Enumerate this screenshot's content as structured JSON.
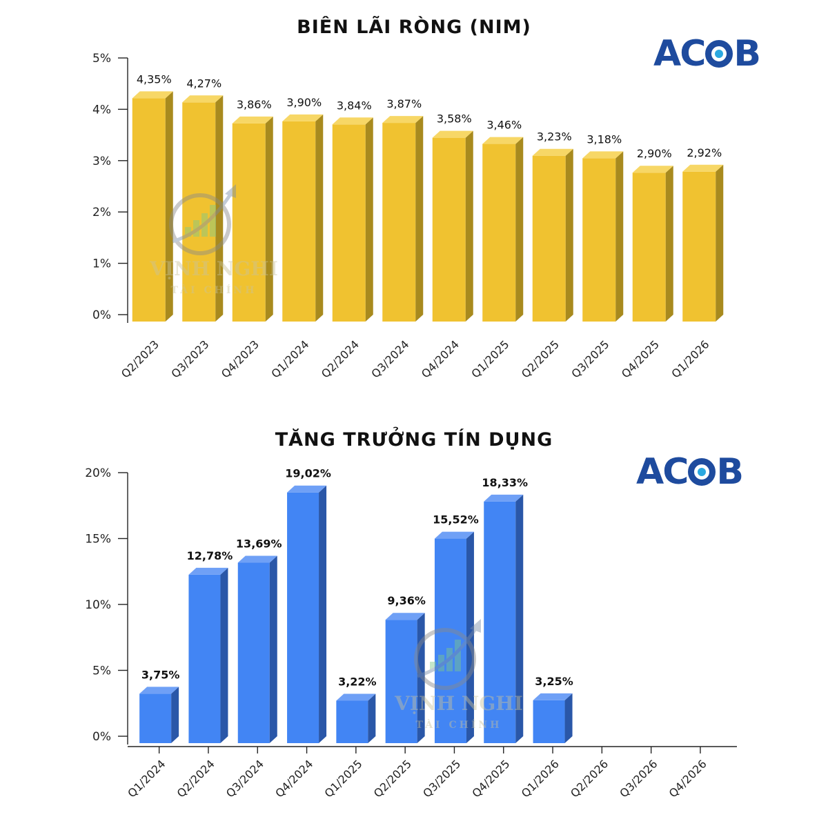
{
  "brand": {
    "logo_text_1": "AC",
    "logo_text_2": "B",
    "logo_color": "#1e4b9e",
    "logo_dot_color": "#2ba8e0"
  },
  "watermark": {
    "line1": "VỊNH NGHI",
    "line2": "TÀI CHÍNH"
  },
  "chart_data": [
    {
      "type": "bar",
      "title": "BIÊN LÃI RÒNG (NIM)",
      "categories": [
        "Q2/2023",
        "Q3/2023",
        "Q4/2023",
        "Q1/2024",
        "Q2/2024",
        "Q3/2024",
        "Q4/2024",
        "Q1/2025",
        "Q2/2025",
        "Q3/2025",
        "Q4/2025",
        "Q1/2026"
      ],
      "values": [
        4.35,
        4.27,
        3.86,
        3.9,
        3.84,
        3.87,
        3.58,
        3.46,
        3.23,
        3.18,
        2.9,
        2.92
      ],
      "data_labels": [
        "4,35%",
        "4,27%",
        "3,86%",
        "3,90%",
        "3,84%",
        "3,87%",
        "3,58%",
        "3,46%",
        "3,23%",
        "3,18%",
        "2,90%",
        "2,92%"
      ],
      "yticks": [
        "0%",
        "1%",
        "2%",
        "3%",
        "4%",
        "5%"
      ],
      "ylim": [
        0,
        5
      ],
      "grid": false,
      "bar_color": "#f0c230",
      "bar_side_color": "#a88a1e",
      "bar_top_color": "#f7d766",
      "label_bold": false
    },
    {
      "type": "bar",
      "title": "TĂNG TRƯỞNG TÍN DỤNG",
      "categories": [
        "Q1/2024",
        "Q2/2024",
        "Q3/2024",
        "Q4/2024",
        "Q1/2025",
        "Q2/2025",
        "Q3/2025",
        "Q4/2025",
        "Q1/2026",
        "Q2/2026",
        "Q3/2026",
        "Q4/2026"
      ],
      "values": [
        3.75,
        12.78,
        13.69,
        19.02,
        3.22,
        9.36,
        15.52,
        18.33,
        3.25,
        null,
        null,
        null
      ],
      "data_labels": [
        "3,75%",
        "12,78%",
        "13,69%",
        "19,02%",
        "3,22%",
        "9,36%",
        "15,52%",
        "18,33%",
        "3,25%",
        "",
        "",
        ""
      ],
      "yticks": [
        "0%",
        "5%",
        "10%",
        "15%",
        "20%"
      ],
      "ylim": [
        0,
        20
      ],
      "grid": false,
      "bar_color": "#4285f4",
      "bar_side_color": "#2a57a8",
      "bar_top_color": "#6fa0f6",
      "label_bold": true
    }
  ]
}
